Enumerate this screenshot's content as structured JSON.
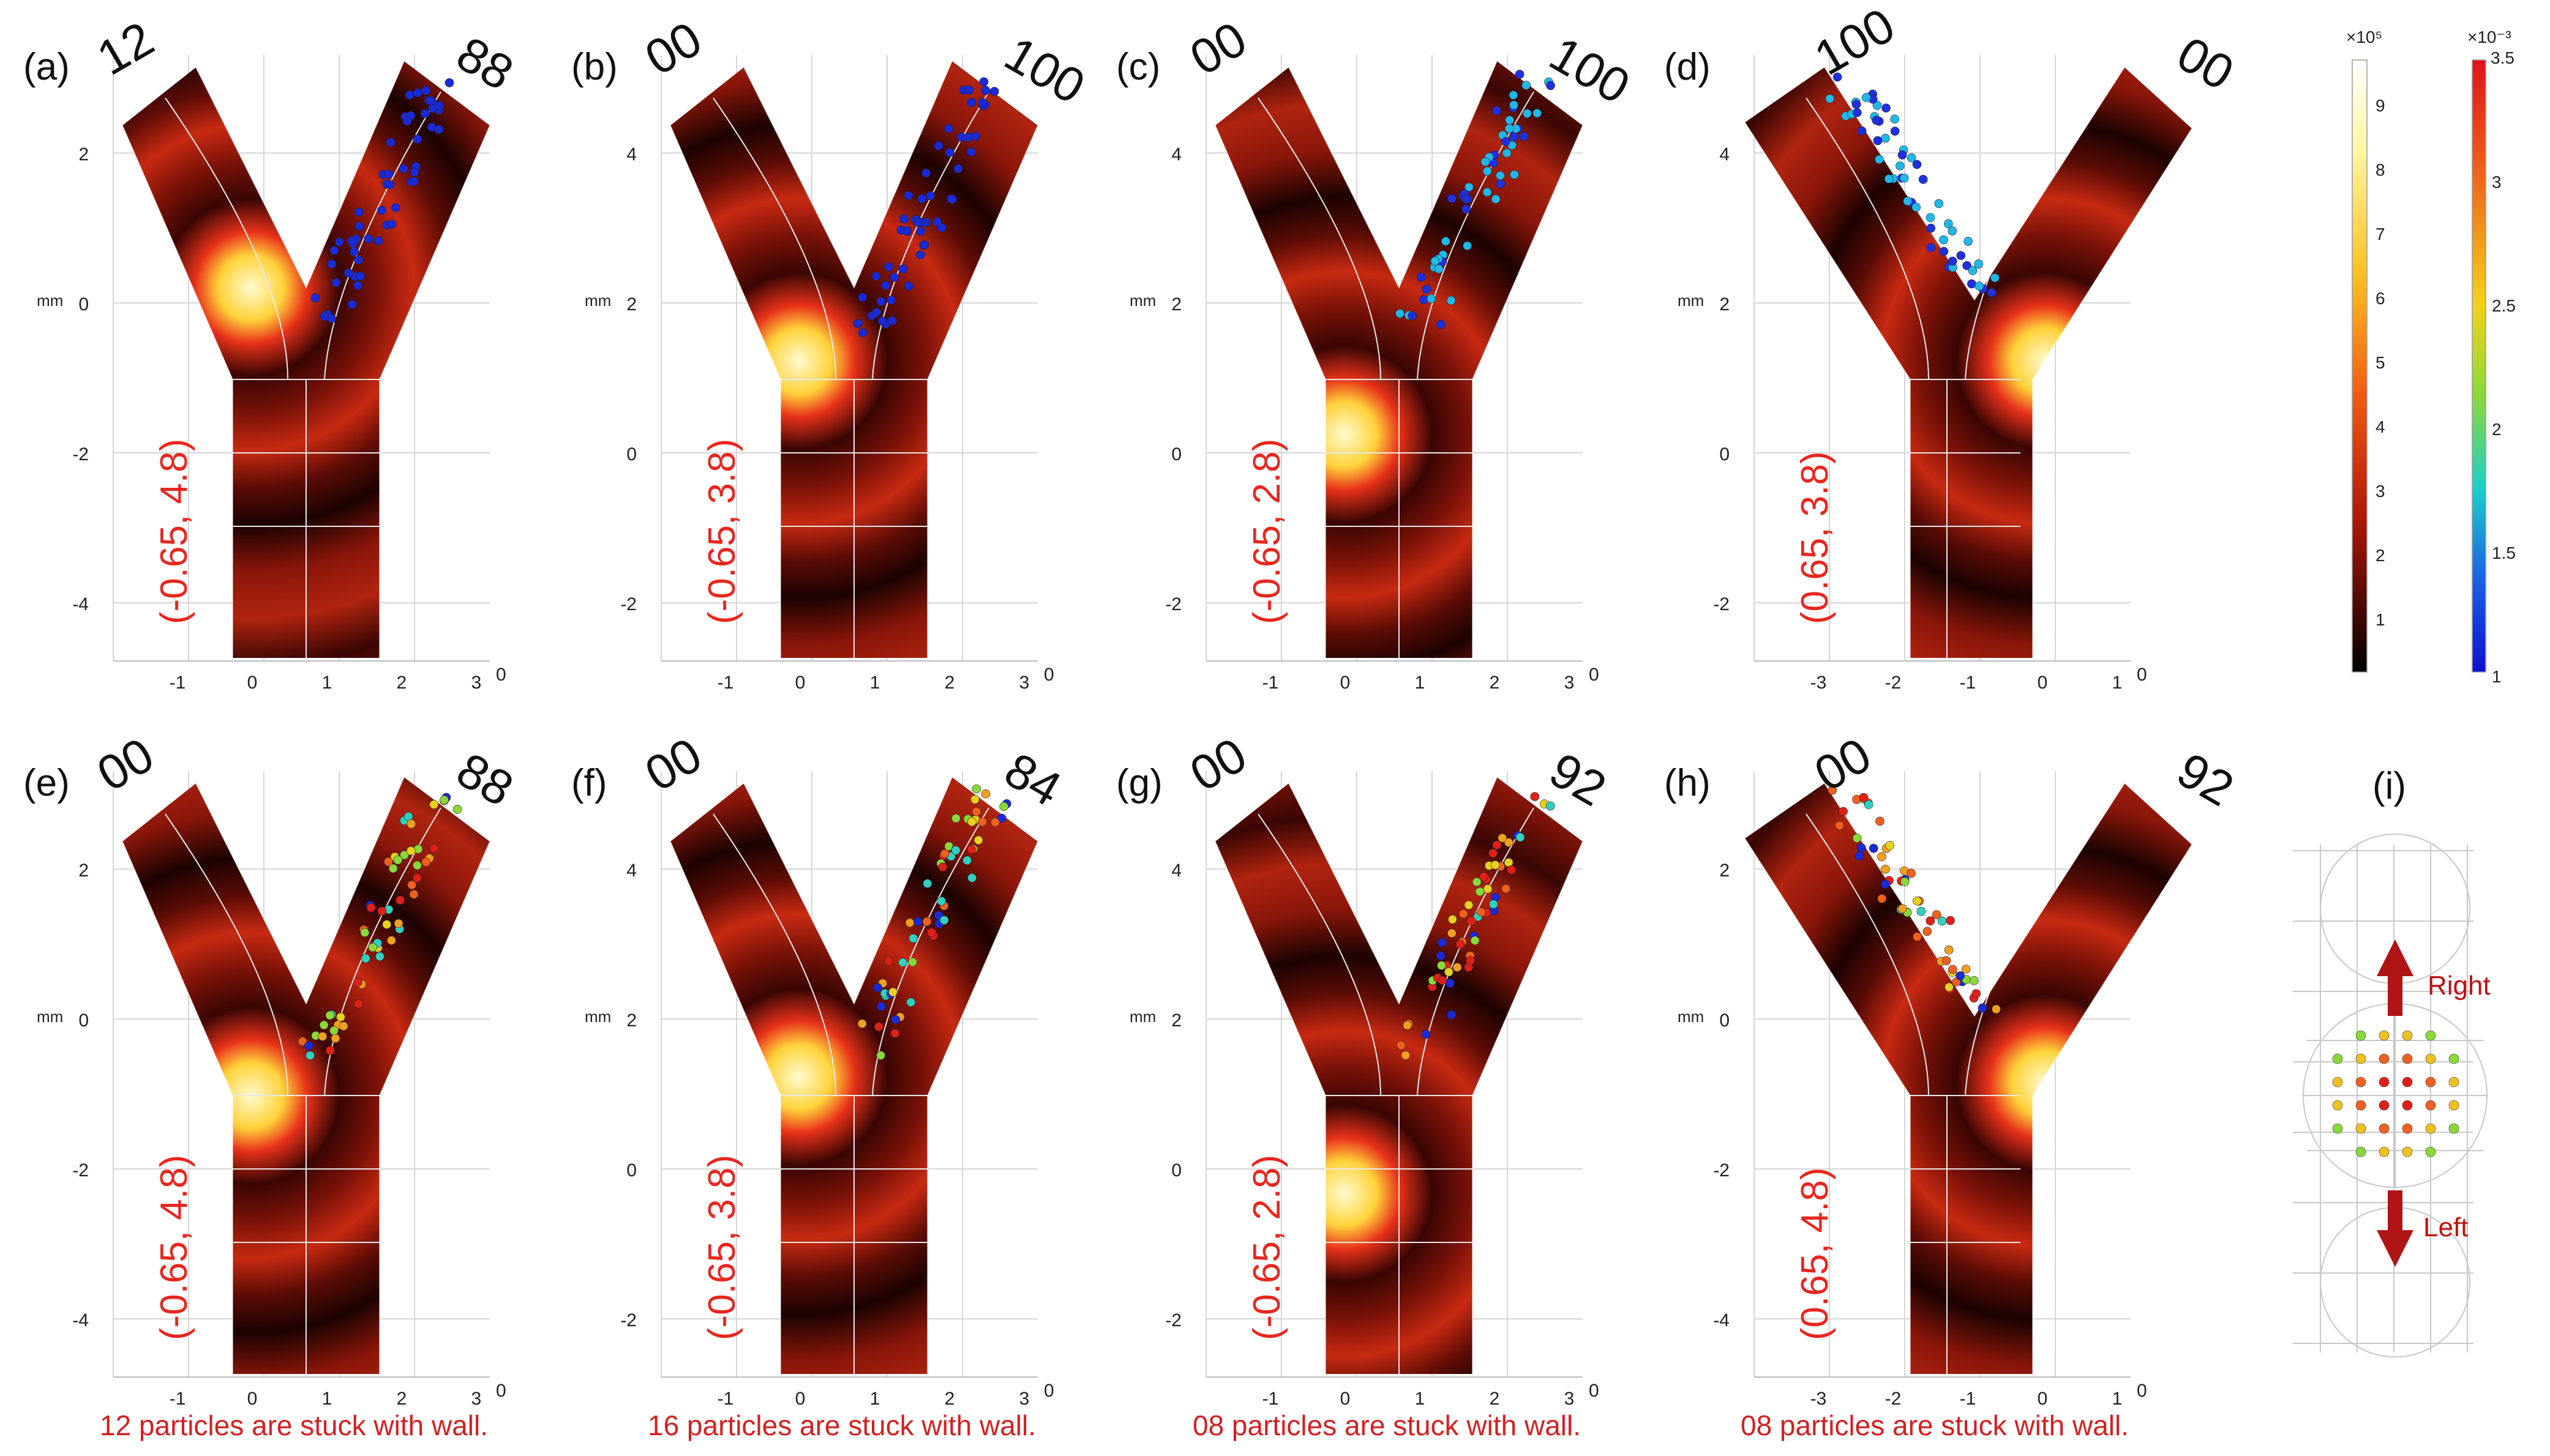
{
  "figure": {
    "panels": [
      {
        "id": "a",
        "label": "(a)",
        "left_count": "12",
        "right_count": "88",
        "source": "(-0.65, 4.8)",
        "x_ticks": [
          "-1",
          "0",
          "1",
          "2",
          "3"
        ],
        "x_end": "0",
        "y_ticks": [
          "2",
          "0",
          "-2",
          "-4"
        ],
        "unit": "mm",
        "hot_spot": "left",
        "caption": ""
      },
      {
        "id": "b",
        "label": "(b)",
        "left_count": "00",
        "right_count": "100",
        "source": "(-0.65, 3.8)",
        "x_ticks": [
          "-1",
          "0",
          "1",
          "2",
          "3"
        ],
        "x_end": "0",
        "y_ticks": [
          "4",
          "2",
          "0",
          "-2"
        ],
        "unit": "mm",
        "hot_spot": "left",
        "caption": ""
      },
      {
        "id": "c",
        "label": "(c)",
        "left_count": "00",
        "right_count": "100",
        "source": "(-0.65, 2.8)",
        "x_ticks": [
          "-1",
          "0",
          "1",
          "2",
          "3"
        ],
        "x_end": "0",
        "y_ticks": [
          "4",
          "2",
          "0",
          "-2"
        ],
        "unit": "mm",
        "hot_spot": "left",
        "caption": ""
      },
      {
        "id": "d",
        "label": "(d)",
        "left_count": "100",
        "right_count": "00",
        "source": "(0.65, 3.8)",
        "x_ticks": [
          "-3",
          "-2",
          "-1",
          "0",
          "1"
        ],
        "x_end": "0",
        "y_ticks": [
          "4",
          "2",
          "0",
          "-2"
        ],
        "unit": "mm",
        "hot_spot": "right",
        "caption": ""
      },
      {
        "id": "e",
        "label": "(e)",
        "left_count": "00",
        "right_count": "88",
        "source": "(-0.65, 4.8)",
        "x_ticks": [
          "-1",
          "0",
          "1",
          "2",
          "3"
        ],
        "x_end": "0",
        "y_ticks": [
          "2",
          "0",
          "-2",
          "-4"
        ],
        "unit": "mm",
        "hot_spot": "left",
        "caption": "12 particles are stuck with wall."
      },
      {
        "id": "f",
        "label": "(f)",
        "left_count": "00",
        "right_count": "84",
        "source": "(-0.65, 3.8)",
        "x_ticks": [
          "-1",
          "0",
          "1",
          "2",
          "3"
        ],
        "x_end": "0",
        "y_ticks": [
          "4",
          "2",
          "0",
          "-2"
        ],
        "unit": "mm",
        "hot_spot": "left",
        "caption": "16 particles are stuck with wall."
      },
      {
        "id": "g",
        "label": "(g)",
        "left_count": "00",
        "right_count": "92",
        "source": "(-0.65, 2.8)",
        "x_ticks": [
          "-1",
          "0",
          "1",
          "2",
          "3"
        ],
        "x_end": "0",
        "y_ticks": [
          "4",
          "2",
          "0",
          "-2"
        ],
        "unit": "mm",
        "hot_spot": "left",
        "caption": "08 particles are stuck with wall."
      },
      {
        "id": "h",
        "label": "(h)",
        "left_count": "00",
        "right_count": "92",
        "source": "(0.65, 4.8)",
        "x_ticks": [
          "-3",
          "-2",
          "-1",
          "0",
          "1"
        ],
        "x_end": "0",
        "y_ticks": [
          "2",
          "0",
          "-2",
          "-4"
        ],
        "unit": "mm",
        "hot_spot": "right",
        "caption": "08 particles are stuck with wall."
      }
    ],
    "colorbar_pressure": {
      "exponent": "×10⁵",
      "ticks": [
        "9",
        "8",
        "7",
        "6",
        "5",
        "4",
        "3",
        "2",
        "1"
      ]
    },
    "colorbar_particle": {
      "exponent": "×10⁻³",
      "top": "3.5",
      "ticks": [
        "3",
        "2.5",
        "2",
        "1.5",
        "1"
      ]
    },
    "panel_i": {
      "label": "(i)",
      "up_label": "Right",
      "down_label": "Left"
    },
    "colors": {
      "source_text": "#e8261e",
      "caption_text": "#d32020",
      "arrow": "#b01515"
    }
  }
}
